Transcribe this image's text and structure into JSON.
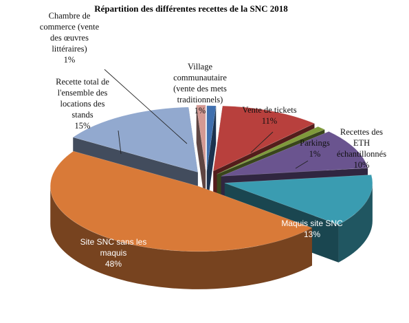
{
  "chart_data": {
    "type": "pie",
    "title": "Répartition des différentes recettes de la SNC 2018",
    "slices": [
      {
        "label": [
          "Village",
          "communautaire",
          "(vente des mets",
          "traditionnels)"
        ],
        "percent_label": "1%",
        "value": 1,
        "color": "#3f6fae"
      },
      {
        "label": [
          "Vente de tickets"
        ],
        "percent_label": "11%",
        "value": 11,
        "color": "#b8403d"
      },
      {
        "label": [
          "Parkings"
        ],
        "percent_label": "1%",
        "value": 1,
        "color": "#7f9a3b"
      },
      {
        "label": [
          "Recettes des",
          "ETH",
          "échantillonnés"
        ],
        "percent_label": "10%",
        "value": 10,
        "color": "#6a548f"
      },
      {
        "label": [
          "Maquis site SNC"
        ],
        "percent_label": "13%",
        "value": 13,
        "color": "#3a9cb1"
      },
      {
        "label": [
          "Site SNC sans les",
          "maquis"
        ],
        "percent_label": "48%",
        "value": 48,
        "color": "#d97a38"
      },
      {
        "label": [
          "Recette total de",
          "l'ensemble des",
          "locations des",
          "stands"
        ],
        "percent_label": "15%",
        "value": 15,
        "color": "#92a9cf"
      },
      {
        "label": [
          "Chambre de",
          "commerce (vente",
          "des œuvres",
          "littéraires)"
        ],
        "percent_label": "1%",
        "value": 1,
        "color": "#d49993"
      }
    ]
  }
}
